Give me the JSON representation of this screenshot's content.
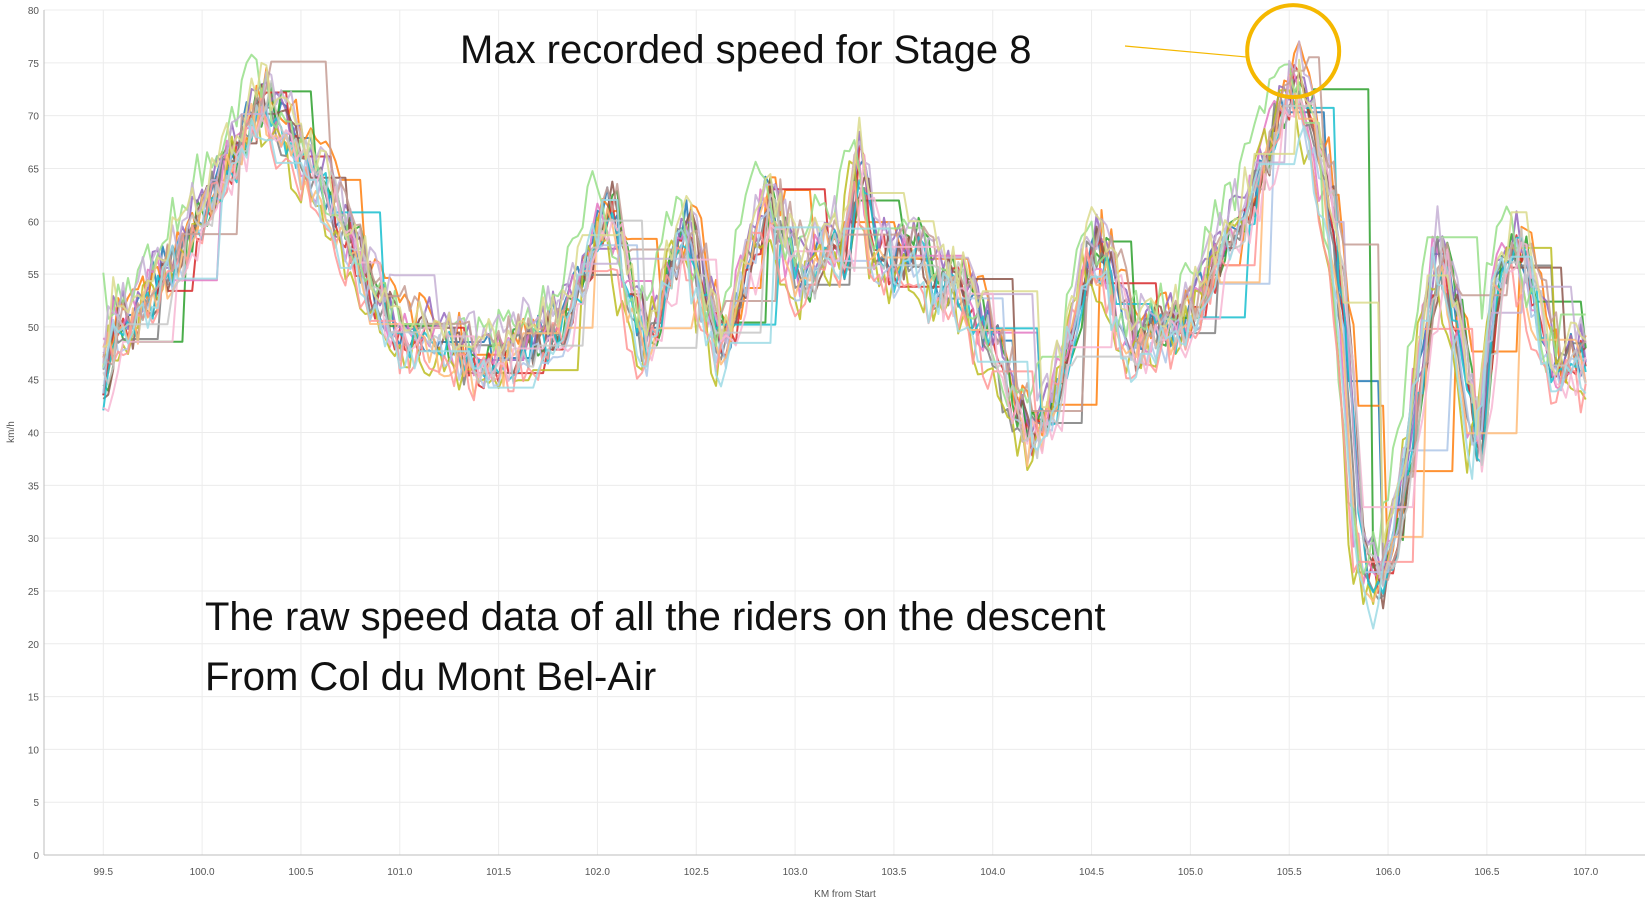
{
  "chart_data": {
    "type": "line",
    "xlabel": "KM from Start",
    "ylabel": "km/h",
    "xlim": [
      99.2,
      107.3
    ],
    "ylim": [
      0,
      80
    ],
    "x_ticks": [
      "99.5",
      "100.0",
      "100.5",
      "101.0",
      "101.5",
      "102.0",
      "102.5",
      "103.0",
      "103.5",
      "104.0",
      "104.5",
      "105.0",
      "105.5",
      "106.0",
      "106.5",
      "107.0"
    ],
    "y_ticks": [
      "0",
      "5",
      "10",
      "15",
      "20",
      "25",
      "30",
      "35",
      "40",
      "45",
      "50",
      "55",
      "60",
      "65",
      "70",
      "75",
      "80"
    ],
    "grid": true,
    "legend": "none",
    "annotations": {
      "max_label": "Max recorded speed for Stage 8",
      "max_point": {
        "x": 105.52,
        "y": 76.3
      },
      "description_line1": "The raw speed data of all the riders on the descent",
      "description_line2": "From Col du Mont Bel-Air"
    },
    "highlight_color": "#f5b800",
    "series_colors": [
      "#1f77b4",
      "#ff7f0e",
      "#2ca02c",
      "#d62728",
      "#9467bd",
      "#8c564b",
      "#e377c2",
      "#7f7f7f",
      "#bcbd22",
      "#17becf",
      "#aec7e8",
      "#ffbb78",
      "#98df8a",
      "#ff9896",
      "#c5b0d5",
      "#c49c94",
      "#f7b6d2",
      "#c7c7c7",
      "#dbdb8d",
      "#9edae5"
    ],
    "profile": {
      "x": [
        99.5,
        99.55,
        99.62,
        99.75,
        99.9,
        100.05,
        100.2,
        100.3,
        100.45,
        100.6,
        100.75,
        100.9,
        101.0,
        101.1,
        101.25,
        101.4,
        101.55,
        101.7,
        101.85,
        101.95,
        102.05,
        102.15,
        102.25,
        102.35,
        102.45,
        102.55,
        102.65,
        102.75,
        102.85,
        102.95,
        103.05,
        103.15,
        103.25,
        103.32,
        103.4,
        103.5,
        103.6,
        103.7,
        103.8,
        103.9,
        104.0,
        104.1,
        104.2,
        104.3,
        104.4,
        104.5,
        104.6,
        104.7,
        104.8,
        104.9,
        105.0,
        105.1,
        105.2,
        105.3,
        105.4,
        105.52,
        105.6,
        105.7,
        105.78,
        105.85,
        105.95,
        106.05,
        106.15,
        106.25,
        106.35,
        106.45,
        106.55,
        106.65,
        106.75,
        106.85,
        106.95,
        107.0
      ],
      "y": [
        45,
        51,
        50,
        54,
        58,
        63,
        68,
        72,
        68,
        64,
        58,
        52,
        50,
        50,
        48,
        47,
        48,
        49,
        51,
        57,
        62,
        54,
        48,
        55,
        60,
        52,
        48,
        56,
        62,
        58,
        54,
        59,
        57,
        67,
        58,
        56,
        58,
        54,
        55,
        52,
        48,
        42,
        40,
        43,
        50,
        58,
        55,
        48,
        50,
        50,
        51,
        55,
        59,
        62,
        68,
        74,
        70,
        62,
        50,
        30,
        25,
        32,
        45,
        58,
        50,
        38,
        55,
        58,
        52,
        45,
        48,
        46
      ]
    },
    "series_count": 20,
    "variation_amplitude": 4.5
  }
}
